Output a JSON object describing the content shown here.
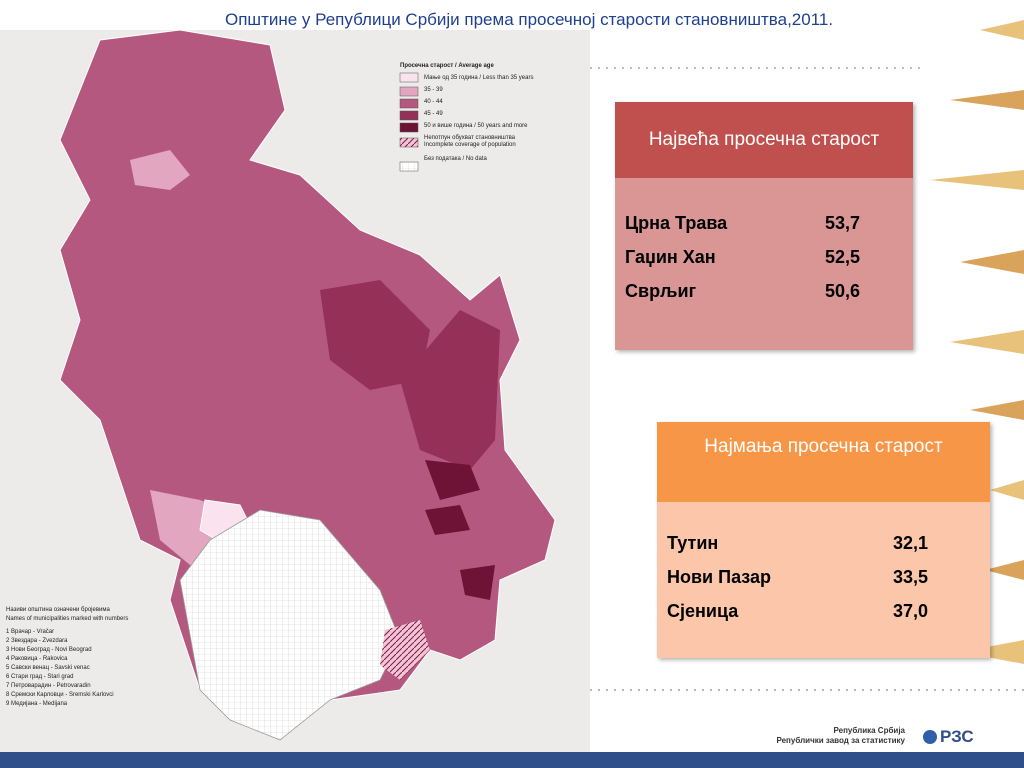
{
  "title": "Општине у Републици Србији према просечној старости становништва,2011.",
  "legend": {
    "title": "Просечна старост / Average age",
    "items": [
      "Мање од 35 година / Less than 35 years",
      "35 - 39",
      "40 - 44",
      "45 - 49",
      "50 и више година / 50 years and more"
    ],
    "incomplete": [
      "Непотпун обухват становништва",
      "Incomplete coverage of population"
    ],
    "nodata": "Без података / No data"
  },
  "names_note": {
    "title": [
      "Називи општина означени бројевима",
      "Names of municipalities marked with numbers"
    ],
    "items": [
      "1 Врачар - Vračar",
      "2 Звездара - Zvezdara",
      "3 Нови Београд - Novi Beograd",
      "4 Раковица - Rakovica",
      "5 Савски венац - Savski venac",
      "6 Стари град - Stari grad",
      "7 Петроварадин - Petrovaradin",
      "8 Сремски Карловци - Sremski Karlovci",
      "9 Медијана - Medijana"
    ]
  },
  "table_highest": {
    "header": "Највећа просечна старост",
    "rows": [
      [
        "Црна Трава",
        "53,7"
      ],
      [
        "Гаџин Хан",
        "52,5"
      ],
      [
        "Сврљиг",
        "50,6"
      ]
    ]
  },
  "table_lowest": {
    "header": "Најмања просечна старост",
    "rows": [
      [
        "Тутин",
        "32,1"
      ],
      [
        "Нови Пазар",
        "33,5"
      ],
      [
        "Сјеница",
        "37,0"
      ]
    ]
  },
  "footer": {
    "line1": "Република Србија",
    "line2": "Републички завод за статистику",
    "logo": "РЗС"
  }
}
